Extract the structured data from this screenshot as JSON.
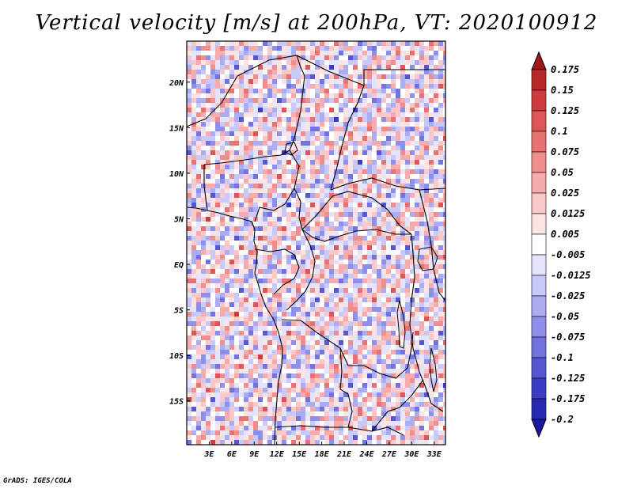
{
  "title": "Vertical velocity [m/s] at 200hPa, VT: 2020100912",
  "credit": "GrADS: IGES/COLA",
  "chart_data": {
    "type": "heatmap",
    "variable": "Vertical velocity",
    "units": "m/s",
    "level": "200hPa",
    "valid_time": "2020100912",
    "x_ticks": [
      "3E",
      "6E",
      "9E",
      "12E",
      "15E",
      "18E",
      "21E",
      "24E",
      "27E",
      "30E",
      "33E"
    ],
    "y_ticks": [
      "20N",
      "15N",
      "10N",
      "5N",
      "EQ",
      "5S",
      "10S",
      "15S"
    ],
    "xlim": [
      0,
      34.5
    ],
    "ylim": [
      -19.8,
      24.5
    ],
    "colorbar": {
      "labels": [
        "0.175",
        "0.15",
        "0.125",
        "0.1",
        "0.075",
        "0.05",
        "0.025",
        "0.0125",
        "0.005",
        "-0.005",
        "-0.0125",
        "-0.025",
        "-0.05",
        "-0.075",
        "-0.1",
        "-0.125",
        "-0.175",
        "-0.2"
      ],
      "colors": [
        "#a01818",
        "#b82828",
        "#cc3c3c",
        "#dc5656",
        "#e87272",
        "#f08e8e",
        "#f6acac",
        "#fac8c8",
        "#fde4e4",
        "#ffffff",
        "#e4e4fd",
        "#c8c8f9",
        "#acacf3",
        "#8e8eeb",
        "#7272e0",
        "#5656d2",
        "#3c3cc2",
        "#2828b0",
        "#1818a0"
      ]
    }
  }
}
